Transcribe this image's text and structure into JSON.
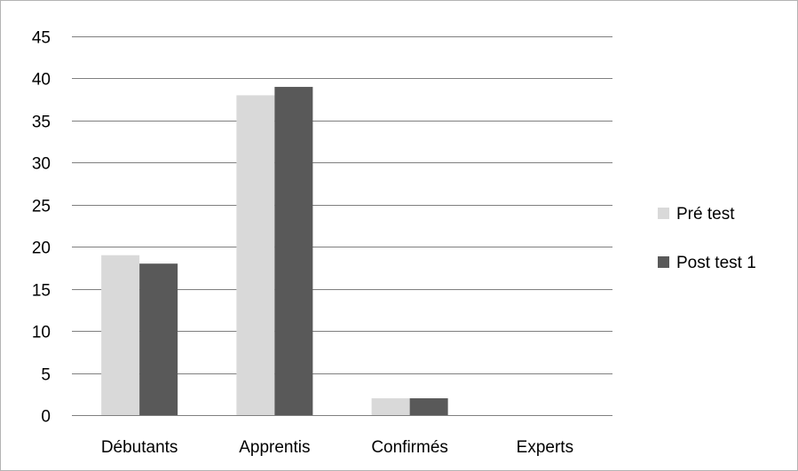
{
  "chart_data": {
    "type": "bar",
    "title": "",
    "xlabel": "",
    "ylabel": "",
    "categories": [
      "Débutants",
      "Apprentis",
      "Confirmés",
      "Experts"
    ],
    "series": [
      {
        "name": "Pré test",
        "color": "#d9d9d9",
        "values": [
          19,
          38,
          2,
          0
        ]
      },
      {
        "name": "Post test 1",
        "color": "#595959",
        "values": [
          18,
          39,
          2,
          0
        ]
      }
    ],
    "ylim": [
      0,
      45
    ],
    "yticks": [
      0,
      5,
      10,
      15,
      20,
      25,
      30,
      35,
      40,
      45
    ],
    "grid": true,
    "gridline_color": "#7f7f7f",
    "legend_position": "right"
  }
}
